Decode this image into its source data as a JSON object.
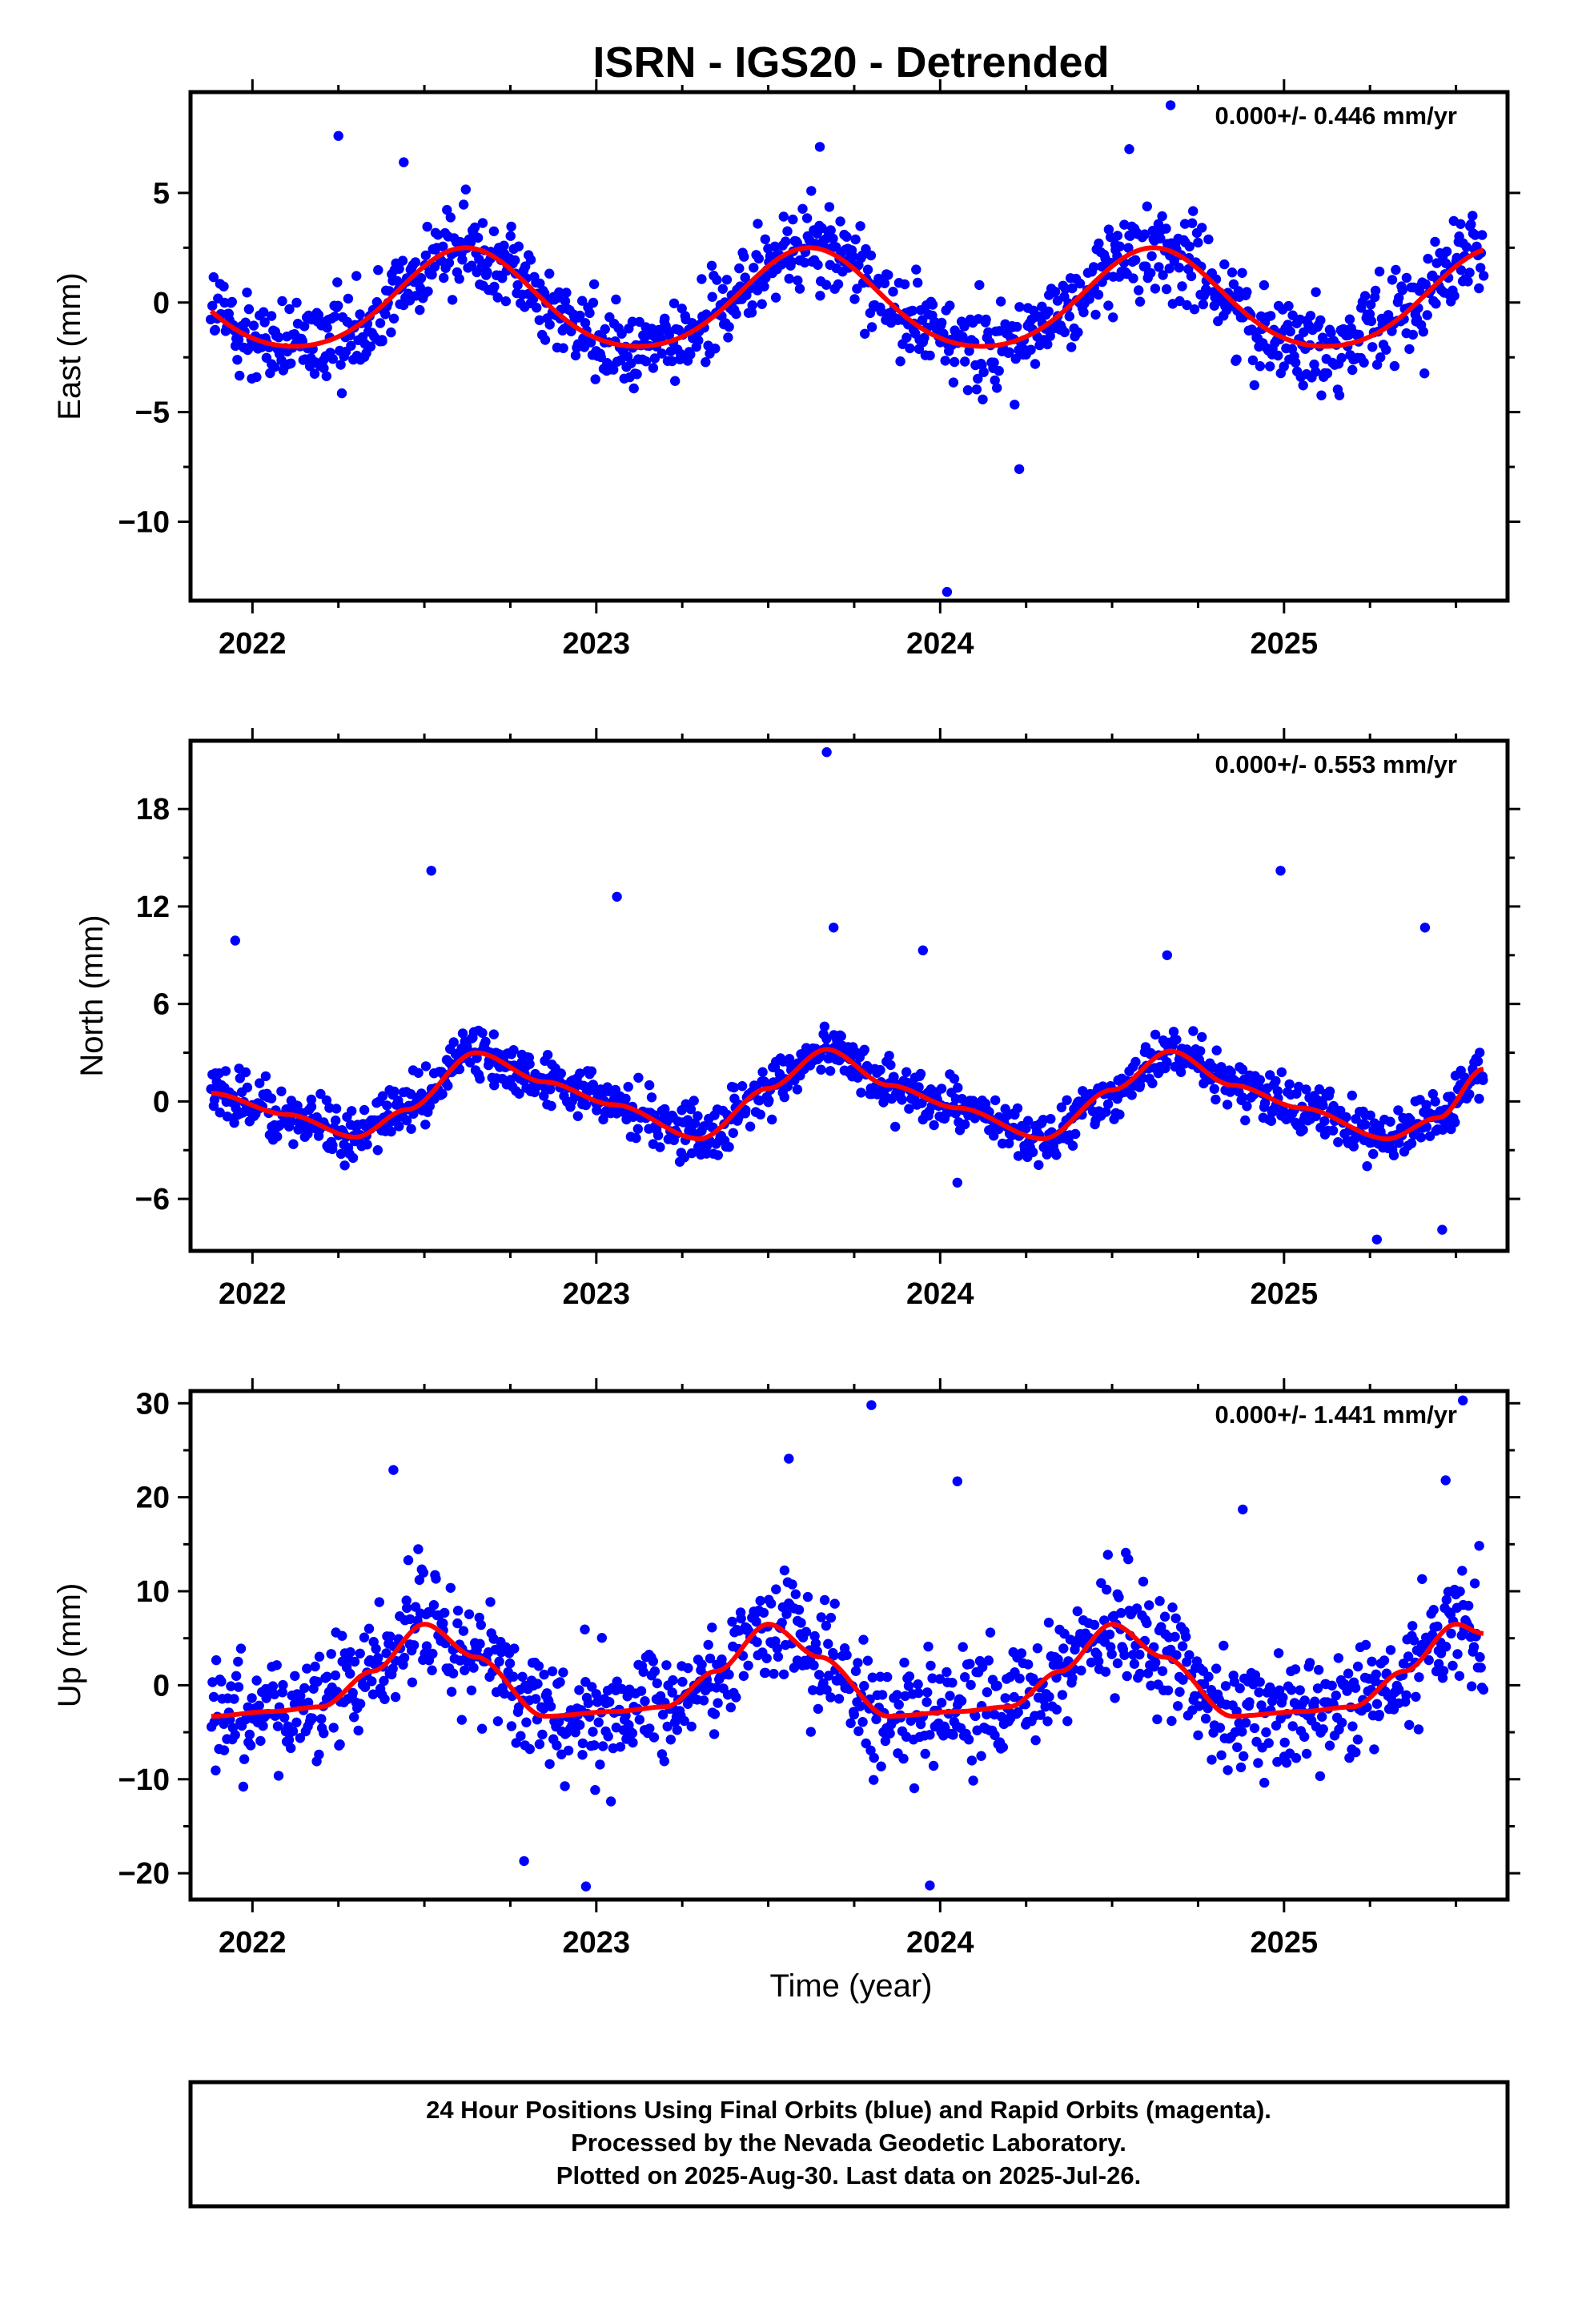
{
  "title": "ISRN - IGS20 - Detrended",
  "xlabel": "Time (year)",
  "footer": {
    "line1": "24 Hour Positions Using Final Orbits (blue) and Rapid Orbits (magenta).",
    "line2": "Processed by the Nevada Geodetic Laboratory.",
    "line3": "Plotted on 2025-Aug-30. Last data on 2025-Jul-26."
  },
  "colors": {
    "points": "#0000ff",
    "fit": "#ff0000",
    "frame": "#000000"
  },
  "chart_data": [
    {
      "type": "scatter",
      "ylabel": "East (mm)",
      "rate_label": "0.000+/- 0.446 mm/yr",
      "xlim": [
        2021.82,
        2025.65
      ],
      "ylim": [
        -13.6,
        9.6
      ],
      "x_ticks": [
        2022,
        2023,
        2024,
        2025
      ],
      "y_ticks": [
        5,
        0,
        -5,
        -10
      ],
      "y_tick_labels": [
        "5",
        "0",
        "−5",
        "−10"
      ],
      "grid": false,
      "series": [
        {
          "kind": "points",
          "x_start": 2021.88,
          "x_end": 2025.58,
          "count": 1150,
          "annual_amp": 2.3,
          "annual_phase_peak": 2022.62,
          "scatter_sd": 1.6,
          "outliers": [
            [
              2024.02,
              -13.2
            ],
            [
              2024.23,
              -7.6
            ],
            [
              2024.67,
              9.0
            ],
            [
              2022.25,
              7.6
            ],
            [
              2023.65,
              7.1
            ],
            [
              2022.44,
              6.4
            ],
            [
              2024.55,
              7.0
            ]
          ]
        },
        {
          "kind": "fit",
          "x_start": 2021.88,
          "x_end": 2025.58,
          "annual_amp": 2.25,
          "annual_phase_peak": 2022.62,
          "semiannual_amp": 0.25
        }
      ]
    },
    {
      "type": "scatter",
      "ylabel": "North (mm)",
      "rate_label": "0.000+/- 0.553 mm/yr",
      "xlim": [
        2021.82,
        2025.65
      ],
      "ylim": [
        -9.2,
        22.2
      ],
      "x_ticks": [
        2022,
        2023,
        2024,
        2025
      ],
      "y_ticks": [
        18,
        12,
        6,
        0,
        -6
      ],
      "y_tick_labels": [
        "18",
        "12",
        "6",
        "0",
        "−6"
      ],
      "grid": false,
      "series": [
        {
          "kind": "points",
          "x_start": 2021.88,
          "x_end": 2025.58,
          "count": 1150,
          "scatter_sd": 1.3,
          "outliers": [
            [
              2023.67,
              21.5
            ],
            [
              2022.52,
              14.2
            ],
            [
              2023.06,
              12.6
            ],
            [
              2024.99,
              14.2
            ],
            [
              2021.95,
              9.9
            ],
            [
              2023.69,
              10.7
            ],
            [
              2025.41,
              10.7
            ],
            [
              2023.95,
              9.3
            ],
            [
              2024.66,
              9.0
            ],
            [
              2024.05,
              -5.0
            ],
            [
              2025.46,
              -7.9
            ],
            [
              2025.27,
              -8.5
            ]
          ]
        },
        {
          "kind": "fit",
          "x_start": 2021.88,
          "x_end": 2025.58,
          "knots_x": [
            2021.88,
            2022.1,
            2022.3,
            2022.45,
            2022.65,
            2022.85,
            2023.05,
            2023.3,
            2023.5,
            2023.67,
            2023.85,
            2024.05,
            2024.3,
            2024.5,
            2024.67,
            2024.85,
            2025.05,
            2025.3,
            2025.45,
            2025.58
          ],
          "knots_y": [
            0.5,
            -0.8,
            -2.2,
            -0.5,
            3.0,
            1.2,
            -0.2,
            -2.3,
            0.8,
            3.2,
            1.0,
            -0.4,
            -2.3,
            0.7,
            3.1,
            1.0,
            -0.4,
            -2.3,
            -1.0,
            2.0
          ]
        }
      ]
    },
    {
      "type": "scatter",
      "ylabel": "Up (mm)",
      "rate_label": "0.000+/- 1.441 mm/yr",
      "xlim": [
        2021.82,
        2025.65
      ],
      "ylim": [
        -22.8,
        31.3
      ],
      "x_ticks": [
        2022,
        2023,
        2024,
        2025
      ],
      "y_ticks": [
        30,
        20,
        10,
        0,
        -10,
        -20
      ],
      "y_tick_labels": [
        "30",
        "20",
        "10",
        "0",
        "−10",
        "−20"
      ],
      "grid": false,
      "series": [
        {
          "kind": "points",
          "x_start": 2021.88,
          "x_end": 2025.58,
          "count": 1150,
          "scatter_sd": 5.0,
          "outliers": [
            [
              2023.8,
              29.8
            ],
            [
              2025.52,
              30.3
            ],
            [
              2022.41,
              22.9
            ],
            [
              2023.56,
              24.1
            ],
            [
              2024.05,
              21.7
            ],
            [
              2025.47,
              21.8
            ],
            [
              2022.97,
              -21.4
            ],
            [
              2023.97,
              -21.3
            ],
            [
              2024.88,
              18.7
            ],
            [
              2022.79,
              -18.7
            ]
          ]
        },
        {
          "kind": "fit",
          "x_start": 2021.88,
          "x_end": 2025.58,
          "knots_x": [
            2021.88,
            2022.05,
            2022.2,
            2022.35,
            2022.5,
            2022.65,
            2022.85,
            2023.05,
            2023.2,
            2023.35,
            2023.5,
            2023.65,
            2023.85,
            2024.05,
            2024.2,
            2024.35,
            2024.5,
            2024.65,
            2024.85,
            2025.05,
            2025.2,
            2025.35,
            2025.5,
            2025.58
          ],
          "knots_y": [
            -3.3,
            -2.8,
            -2.3,
            1.5,
            6.5,
            3.0,
            -3.3,
            -2.8,
            -2.3,
            1.5,
            6.5,
            3.0,
            -3.3,
            -2.8,
            -2.3,
            1.5,
            6.5,
            3.0,
            -3.3,
            -2.8,
            -2.3,
            1.5,
            6.5,
            5.5
          ]
        }
      ]
    }
  ]
}
